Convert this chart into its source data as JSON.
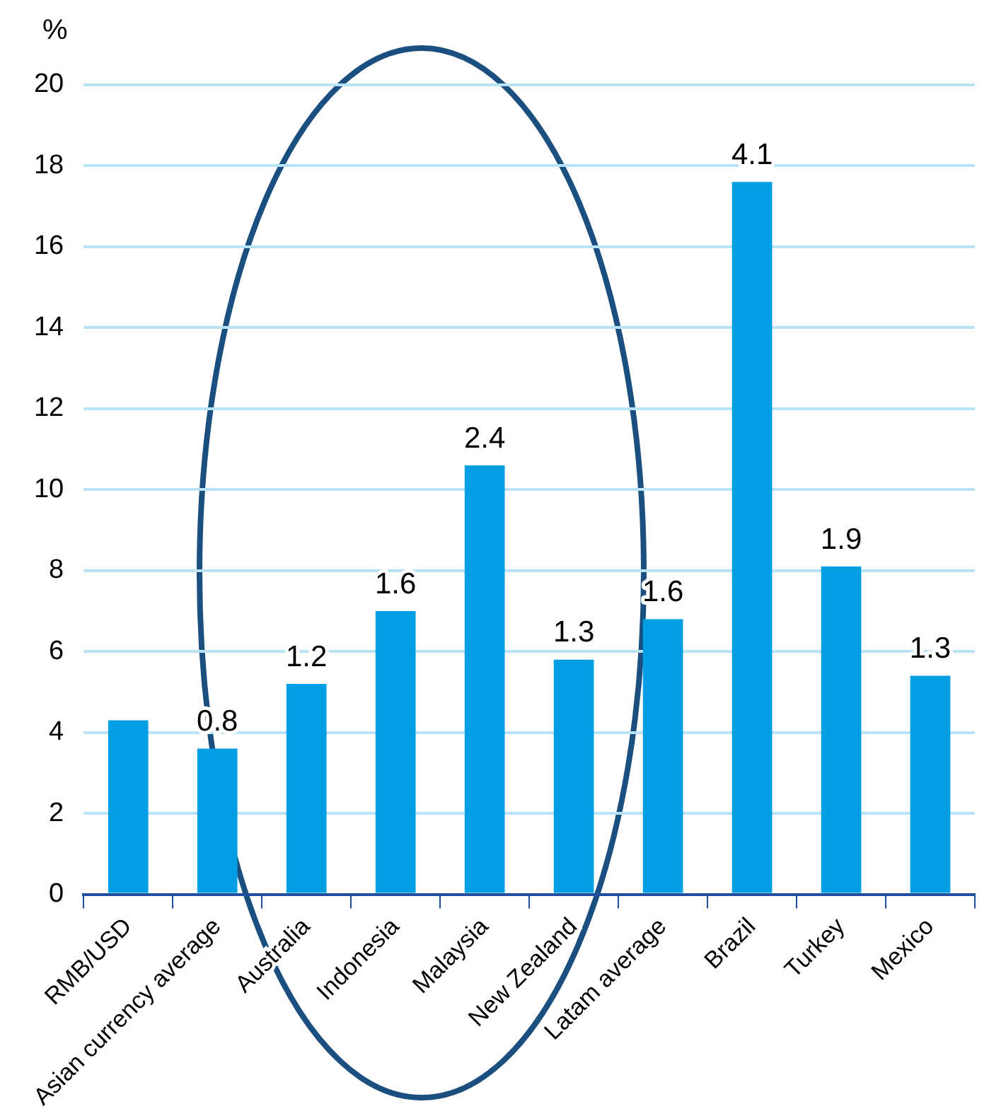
{
  "chart_data": {
    "type": "bar",
    "ylabel": "%",
    "categories": [
      "RMB/USD",
      "Asian currency average",
      "Australia",
      "Indonesia",
      "Malaysia",
      "New Zealand",
      "Latam average",
      "Brazil",
      "Turkey",
      "Mexico"
    ],
    "values": [
      4.3,
      3.6,
      5.2,
      7.0,
      10.6,
      5.8,
      6.8,
      17.6,
      8.1,
      5.4
    ],
    "annotations": [
      {
        "text": "0.8",
        "x": "Asian currency average",
        "y": 3.6
      },
      {
        "text": "1.2",
        "x": "Australia",
        "y": 5.2
      },
      {
        "text": "1.6",
        "x": "Indonesia",
        "y": 7.0
      },
      {
        "text": "2.4",
        "x": "Malaysia",
        "y": 10.6
      },
      {
        "text": "1.3",
        "x": "New Zealand",
        "y": 5.8
      },
      {
        "text": "1.6",
        "x": "Latam average",
        "y": 6.8
      },
      {
        "text": "4.1",
        "x": "Brazil",
        "y": 17.6
      },
      {
        "text": "1.9",
        "x": "Turkey",
        "y": 8.1
      },
      {
        "text": "1.3",
        "x": "Mexico",
        "y": 5.4
      }
    ],
    "color": "#009fe3",
    "ylim": [
      0,
      20
    ],
    "yticks": [
      0,
      2,
      4,
      6,
      8,
      10,
      12,
      14,
      16,
      18,
      20
    ],
    "grid": "y",
    "legend": false
  }
}
